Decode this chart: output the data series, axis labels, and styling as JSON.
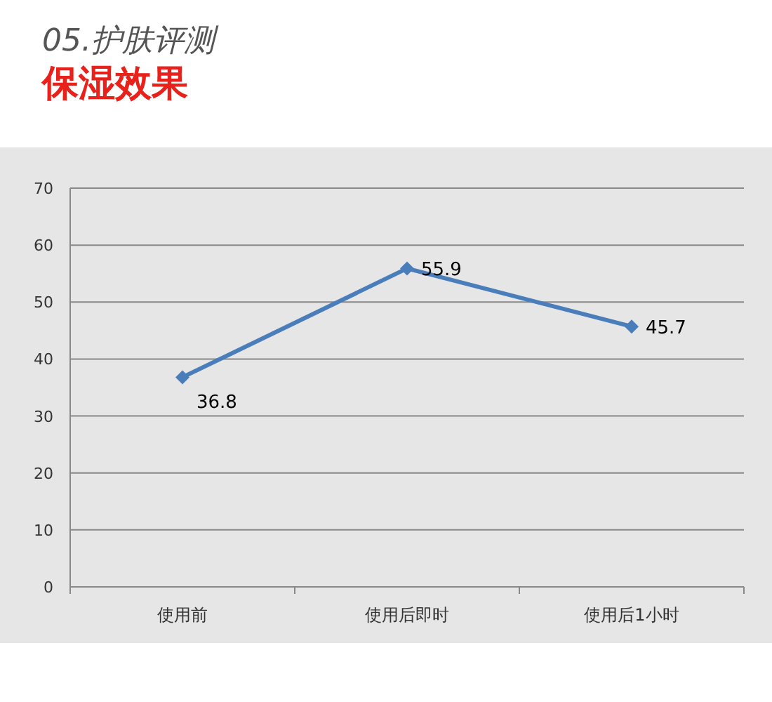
{
  "chart_data": {
    "type": "line",
    "title": "05.护肤评测",
    "subtitle": "保湿效果",
    "categories": [
      "使用前",
      "使用后即时",
      "使用后1小时"
    ],
    "series": [
      {
        "color": "#4a7ebb",
        "values": [
          36.8,
          55.9,
          45.7
        ]
      }
    ],
    "ylim": [
      0,
      70
    ],
    "yticks": [
      0,
      10,
      20,
      30,
      40,
      50,
      60,
      70
    ],
    "grid": "y",
    "marker": "diamond",
    "data_labels": true
  }
}
